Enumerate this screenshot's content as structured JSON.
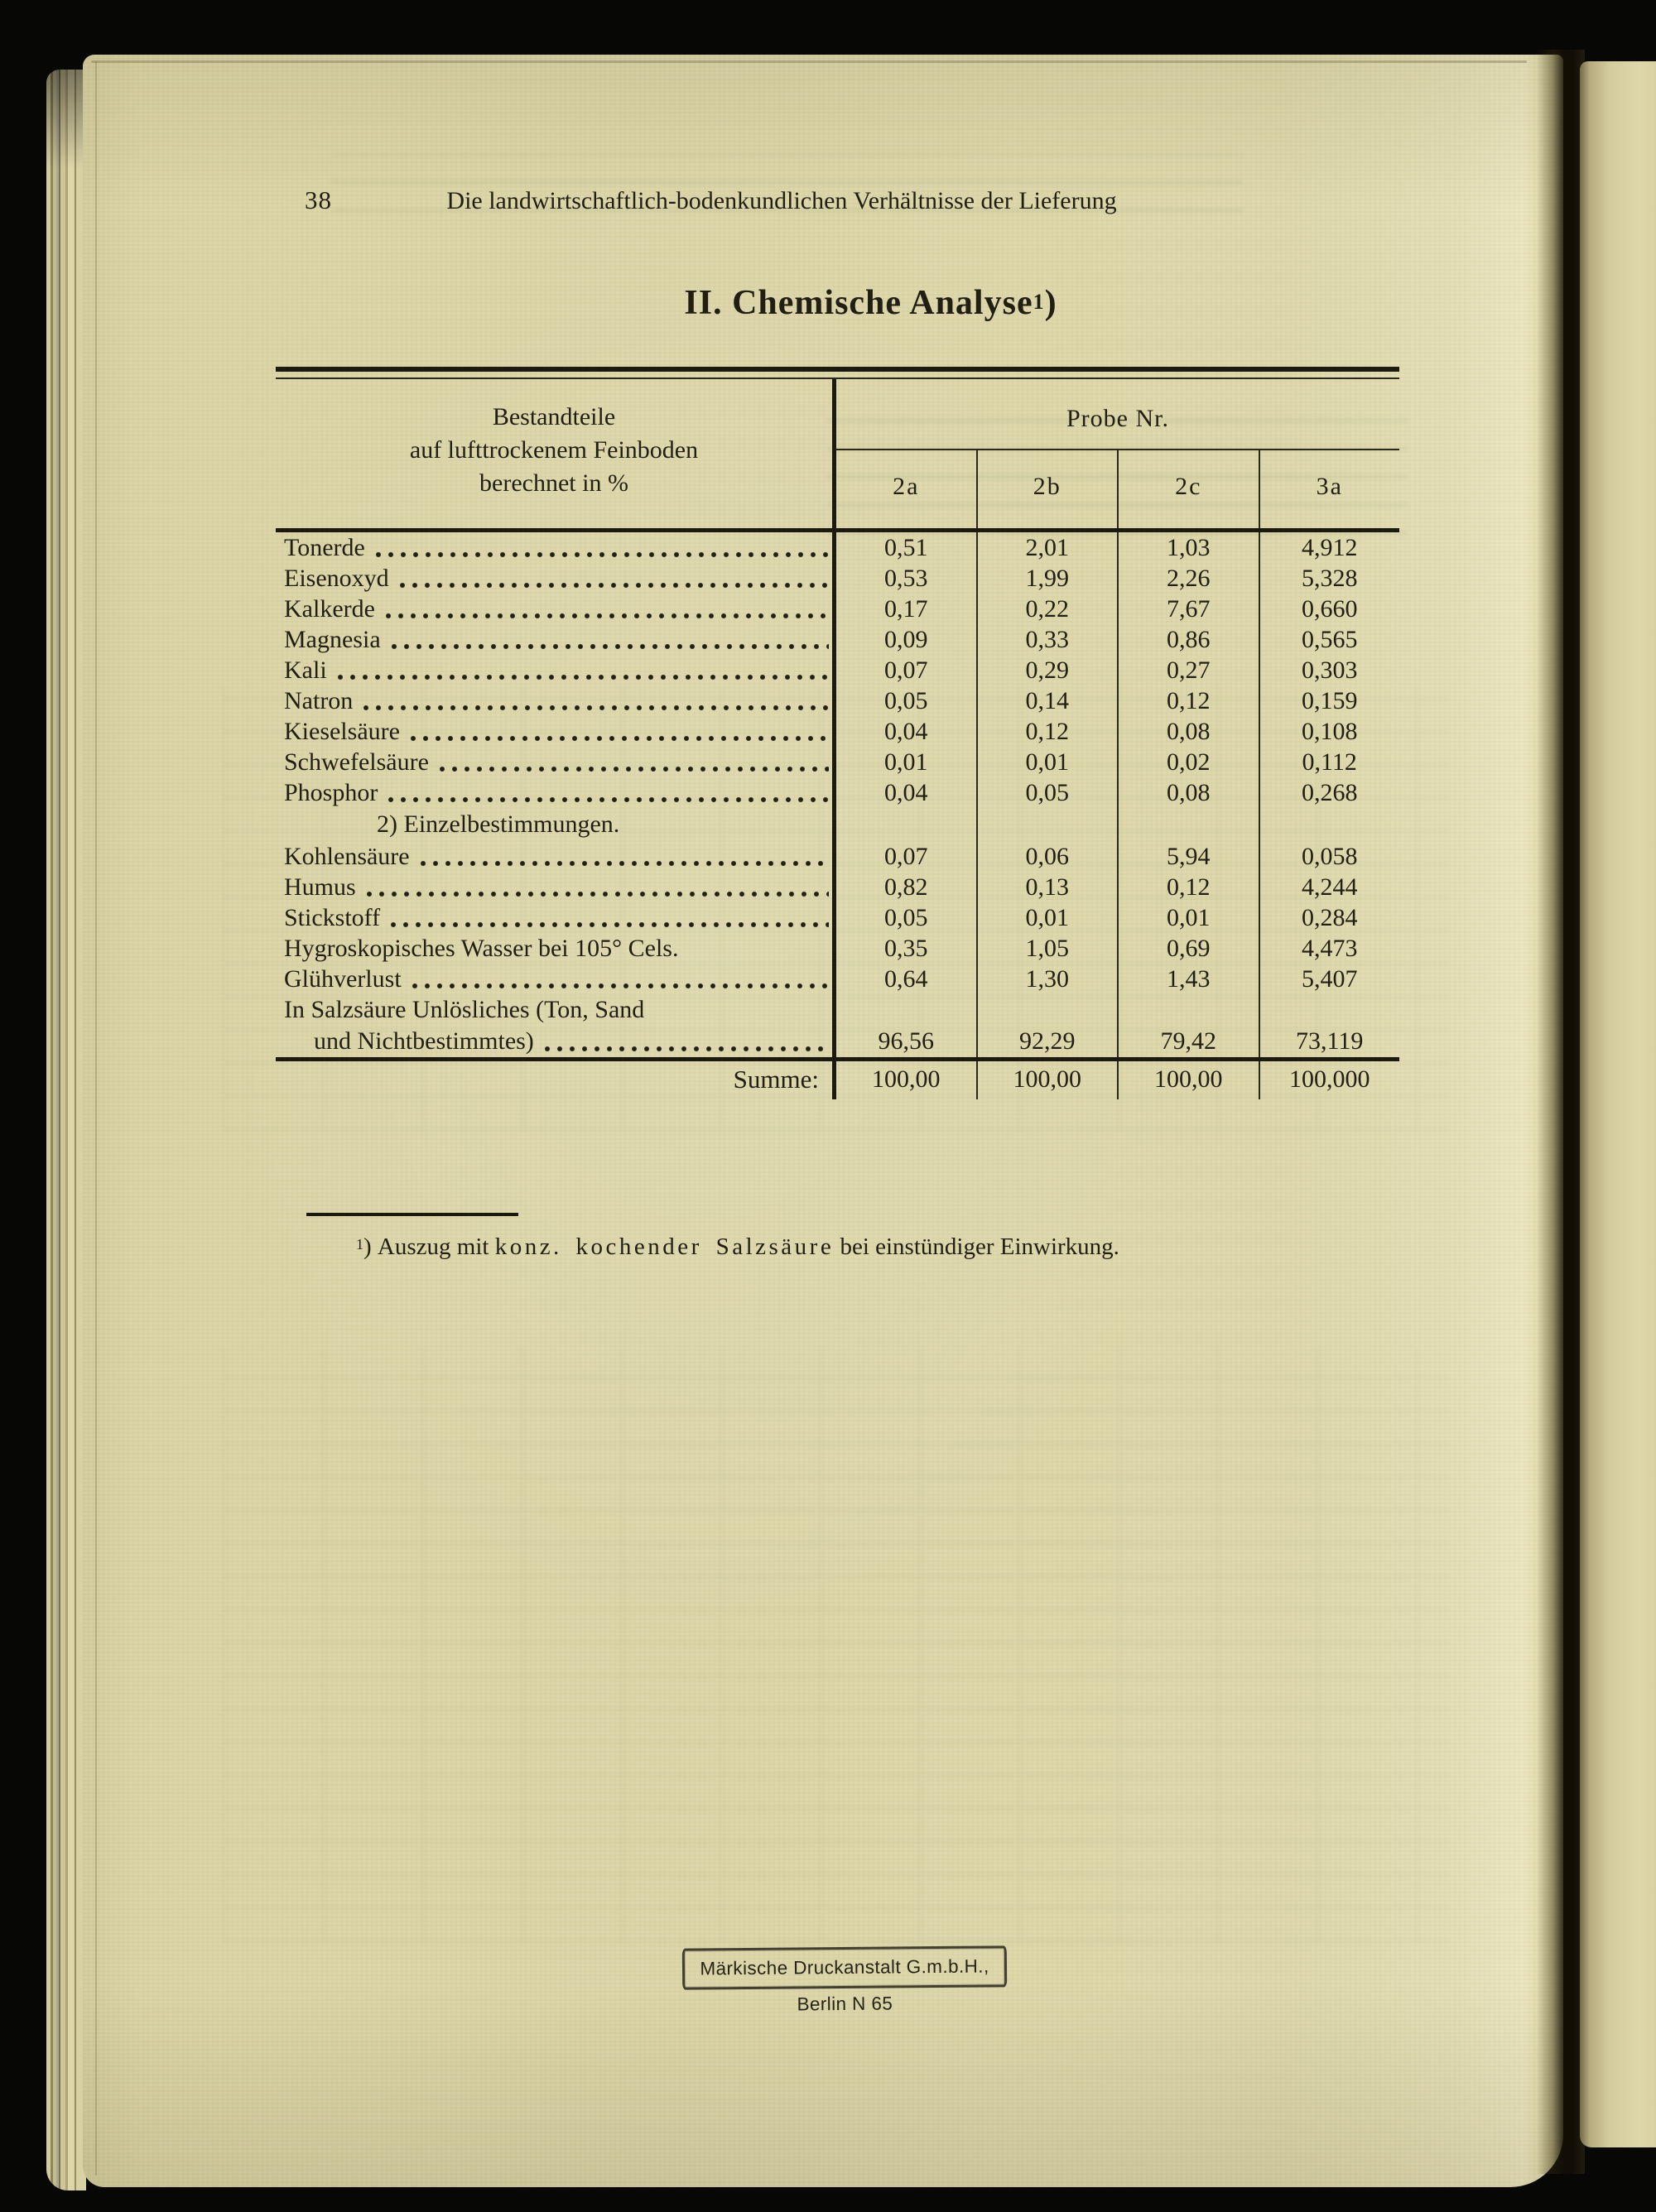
{
  "colors": {
    "paper": "#ded8ac",
    "ink": "#211e13",
    "background": "#070706"
  },
  "page": {
    "number": "38",
    "running_header": "Die landwirtschaftlich-bodenkundlichen Verhältnisse der Lieferung",
    "title": "II. Chemische Analyse",
    "title_footnote_marker": "1",
    "title_footnote_paren": ")"
  },
  "table": {
    "stub_header_lines": [
      "Bestandteile",
      "auf lufttrockenem Feinboden",
      "berechnet in %"
    ],
    "probe_header": "Probe Nr.",
    "columns": [
      "2a",
      "2b",
      "2c",
      "3a"
    ],
    "rows": [
      {
        "type": "data",
        "label": "Tonerde",
        "leader": true,
        "values": [
          "0,51",
          "2,01",
          "1,03",
          "4,912"
        ]
      },
      {
        "type": "data",
        "label": "Eisenoxyd",
        "leader": true,
        "values": [
          "0,53",
          "1,99",
          "2,26",
          "5,328"
        ]
      },
      {
        "type": "data",
        "label": "Kalkerde",
        "leader": true,
        "values": [
          "0,17",
          "0,22",
          "7,67",
          "0,660"
        ]
      },
      {
        "type": "data",
        "label": "Magnesia",
        "leader": true,
        "values": [
          "0,09",
          "0,33",
          "0,86",
          "0,565"
        ]
      },
      {
        "type": "data",
        "label": "Kali",
        "leader": true,
        "values": [
          "0,07",
          "0,29",
          "0,27",
          "0,303"
        ]
      },
      {
        "type": "data",
        "label": "Natron",
        "leader": true,
        "values": [
          "0,05",
          "0,14",
          "0,12",
          "0,159"
        ]
      },
      {
        "type": "data",
        "label": "Kieselsäure",
        "leader": true,
        "values": [
          "0,04",
          "0,12",
          "0,08",
          "0,108"
        ]
      },
      {
        "type": "data",
        "label": "Schwefelsäure",
        "leader": true,
        "values": [
          "0,01",
          "0,01",
          "0,02",
          "0,112"
        ]
      },
      {
        "type": "data",
        "label": "Phosphor",
        "leader": true,
        "values": [
          "0,04",
          "0,05",
          "0,08",
          "0,268"
        ]
      },
      {
        "type": "section",
        "label": "2) Einzelbestimmungen."
      },
      {
        "type": "data",
        "label": "Kohlensäure",
        "leader": true,
        "values": [
          "0,07",
          "0,06",
          "5,94",
          "0,058"
        ]
      },
      {
        "type": "data",
        "label": "Humus",
        "leader": true,
        "values": [
          "0,82",
          "0,13",
          "0,12",
          "4,244"
        ]
      },
      {
        "type": "data",
        "label": "Stickstoff",
        "leader": true,
        "values": [
          "0,05",
          "0,01",
          "0,01",
          "0,284"
        ]
      },
      {
        "type": "data",
        "label": "Hygroskopisches Wasser bei 105° Cels.",
        "leader": false,
        "values": [
          "0,35",
          "1,05",
          "0,69",
          "4,473"
        ]
      },
      {
        "type": "data",
        "label": "Glühverlust",
        "leader": true,
        "values": [
          "0,64",
          "1,30",
          "1,43",
          "5,407"
        ]
      },
      {
        "type": "data2",
        "label_lines": [
          "In Salzsäure Unlösliches (Ton, Sand",
          "und Nichtbestimmtes)"
        ],
        "leader": true,
        "values": [
          "96,56",
          "92,29",
          "79,42",
          "73,119"
        ]
      }
    ],
    "sum_row": {
      "label": "Summe:",
      "values": [
        "100,00",
        "100,00",
        "100,00",
        "100,000"
      ]
    }
  },
  "footnote": {
    "marker": "1",
    "marker_paren": ")",
    "text_prefix": "Auszug mit",
    "text_spaced": "konz. kochender Salzsäure",
    "text_suffix": "bei einstündiger Einwirkung."
  },
  "stamp": {
    "text": "Märkische Druckanstalt G.m.b.H., Berlin N 65"
  }
}
